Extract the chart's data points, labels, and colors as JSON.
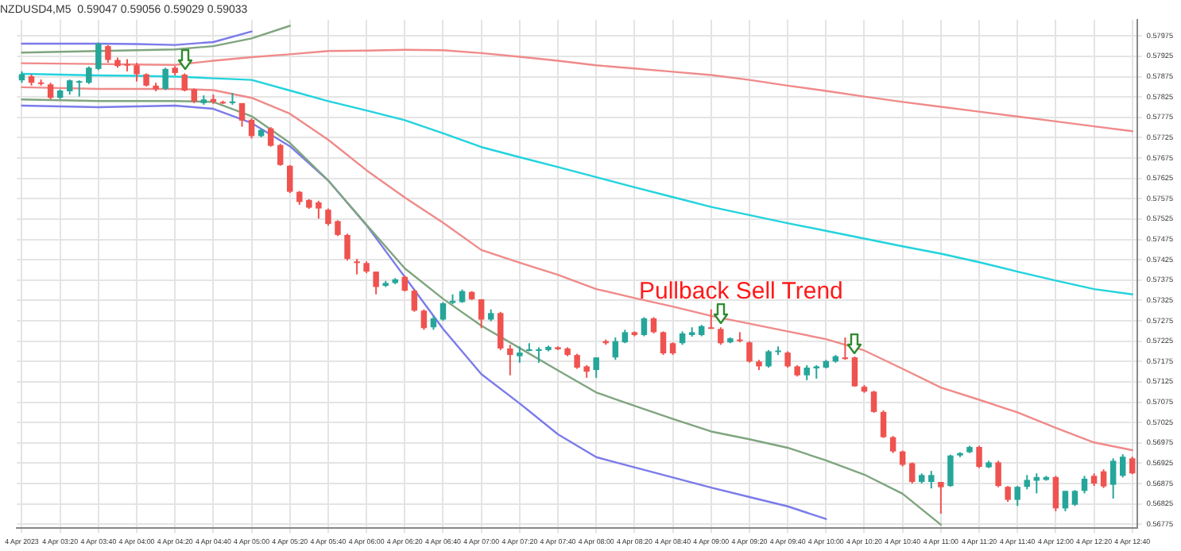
{
  "chart_data": {
    "type": "candlestick",
    "title": "NZDUSD4,M5  0.59047 0.59056 0.59029 0.59033",
    "annotations": [
      "Pullback Sell Trend"
    ],
    "ylim": [
      0.56765,
      0.58015
    ],
    "categories": [
      "4 Apr 2023",
      null,
      null,
      null,
      "4 Apr 03:20",
      null,
      null,
      null,
      "4 Apr 03:40",
      null,
      null,
      null,
      "4 Apr 04:00",
      null,
      null,
      null,
      "4 Apr 04:20",
      null,
      null,
      null,
      "4 Apr 04:40",
      null,
      null,
      null,
      "4 Apr 05:00",
      null,
      null,
      null,
      "4 Apr 05:20",
      null,
      null,
      null,
      "4 Apr 05:40",
      null,
      null,
      null,
      "4 Apr 06:00",
      null,
      null,
      null,
      "4 Apr 06:20",
      null,
      null,
      null,
      "4 Apr 06:40",
      null,
      null,
      null,
      "4 Apr 07:00",
      null,
      null,
      null,
      "4 Apr 07:20",
      null,
      null,
      null,
      "4 Apr 07:40",
      null,
      null,
      null,
      "4 Apr 08:00",
      null,
      null,
      null,
      "4 Apr 08:20",
      null,
      null,
      null,
      "4 Apr 08:40",
      null,
      null,
      null,
      "4 Apr 09:00",
      null,
      null,
      null,
      "4 Apr 09:20",
      null,
      null,
      null,
      "4 Apr 09:40",
      null,
      null,
      null,
      "4 Apr 10:00",
      null,
      null,
      null,
      "4 Apr 10:20",
      null,
      null,
      null,
      "4 Apr 10:40",
      null,
      null,
      null,
      "4 Apr 11:00",
      null,
      null,
      null,
      "4 Apr 11:20",
      null,
      null,
      null,
      "4 Apr 11:40",
      null,
      null,
      null,
      "4 Apr 12:00",
      null,
      null,
      null,
      "4 Apr 12:20",
      null,
      null,
      null,
      "4 Apr 12:40"
    ],
    "yticks": [
      0.56775,
      0.56825,
      0.56875,
      0.56925,
      0.56975,
      0.57025,
      0.57075,
      0.57125,
      0.57175,
      0.57225,
      0.57275,
      0.57325,
      0.57375,
      0.57425,
      0.57475,
      0.57525,
      0.57575,
      0.57625,
      0.57675,
      0.57725,
      0.57775,
      0.57825,
      0.57875,
      0.57925,
      0.57975
    ],
    "grid": true,
    "legend": false,
    "marker": "none",
    "ohlc": [
      [
        0.57866,
        0.57888,
        0.5786,
        0.57881
      ],
      [
        0.57876,
        0.57881,
        0.57853,
        0.5786
      ],
      [
        0.57861,
        0.57868,
        0.57853,
        0.57859
      ],
      [
        0.57856,
        0.5786,
        0.57819,
        0.57823
      ],
      [
        0.57823,
        0.57844,
        0.5782,
        0.57841
      ],
      [
        0.57839,
        0.57868,
        0.57831,
        0.57866
      ],
      [
        0.57861,
        0.57866,
        0.57826,
        0.57864
      ],
      [
        0.5786,
        0.579,
        0.57857,
        0.57897
      ],
      [
        0.57894,
        0.57959,
        0.57891,
        0.57956
      ],
      [
        0.5795,
        0.57953,
        0.57909,
        0.57916
      ],
      [
        0.57916,
        0.57922,
        0.57897,
        0.57901
      ],
      [
        0.57906,
        0.57918,
        0.57888,
        0.57903
      ],
      [
        0.57903,
        0.57909,
        0.57863,
        0.57881
      ],
      [
        0.57881,
        0.57883,
        0.57851,
        0.57853
      ],
      [
        0.57853,
        0.5786,
        0.57839,
        0.57844
      ],
      [
        0.57845,
        0.57897,
        0.57842,
        0.57894
      ],
      [
        0.57897,
        0.57901,
        0.57878,
        0.57884
      ],
      [
        0.5788,
        0.57883,
        0.57839,
        0.57841
      ],
      [
        0.57844,
        0.57846,
        0.5781,
        0.57814
      ],
      [
        0.5781,
        0.57829,
        0.57806,
        0.57819
      ],
      [
        0.5782,
        0.57831,
        0.57808,
        0.57813
      ],
      [
        0.57813,
        0.57816,
        0.57808,
        0.5781
      ],
      [
        0.5781,
        0.57835,
        0.57806,
        0.57814
      ],
      [
        0.5781,
        0.5781,
        0.57752,
        0.57767
      ],
      [
        0.57769,
        0.57773,
        0.57723,
        0.57729
      ],
      [
        0.57729,
        0.57747,
        0.57726,
        0.57744
      ],
      [
        0.57748,
        0.57751,
        0.57703,
        0.57705
      ],
      [
        0.57707,
        0.5771,
        0.57656,
        0.57658
      ],
      [
        0.57656,
        0.57658,
        0.57589,
        0.57592
      ],
      [
        0.57592,
        0.57594,
        0.5756,
        0.57567
      ],
      [
        0.57572,
        0.57574,
        0.5755,
        0.57553
      ],
      [
        0.57566,
        0.5757,
        0.57526,
        0.57551
      ],
      [
        0.57548,
        0.57551,
        0.57509,
        0.57513
      ],
      [
        0.5752,
        0.57522,
        0.57483,
        0.57486
      ],
      [
        0.57486,
        0.57489,
        0.57423,
        0.57427
      ],
      [
        0.57421,
        0.57427,
        0.57389,
        0.57417
      ],
      [
        0.57417,
        0.57421,
        0.57392,
        0.57396
      ],
      [
        0.57396,
        0.57396,
        0.5734,
        0.57358
      ],
      [
        0.57361,
        0.57373,
        0.57358,
        0.57368
      ],
      [
        0.57368,
        0.5738,
        0.57365,
        0.57377
      ],
      [
        0.57383,
        0.57386,
        0.57347,
        0.57349
      ],
      [
        0.57349,
        0.57352,
        0.57297,
        0.573
      ],
      [
        0.573,
        0.57303,
        0.57253,
        0.57257
      ],
      [
        0.57259,
        0.57287,
        0.57253,
        0.57281
      ],
      [
        0.57278,
        0.57321,
        0.57275,
        0.57318
      ],
      [
        0.57319,
        0.5734,
        0.57316,
        0.57324
      ],
      [
        0.57321,
        0.57352,
        0.57319,
        0.57348
      ],
      [
        0.57346,
        0.57348,
        0.57326,
        0.57328
      ],
      [
        0.57328,
        0.57328,
        0.57257,
        0.57278
      ],
      [
        0.57278,
        0.57303,
        0.57274,
        0.57294
      ],
      [
        0.57294,
        0.57297,
        0.57203,
        0.57207
      ],
      [
        0.57207,
        0.57216,
        0.57141,
        0.57191
      ],
      [
        0.57188,
        0.57212,
        0.57172,
        0.57197
      ],
      [
        0.57201,
        0.5722,
        0.572,
        0.57205
      ],
      [
        0.57201,
        0.5721,
        0.57172,
        0.57205
      ],
      [
        0.57203,
        0.57214,
        0.572,
        0.57211
      ],
      [
        0.5721,
        0.57212,
        0.57203,
        0.57205
      ],
      [
        0.57207,
        0.5721,
        0.57188,
        0.57191
      ],
      [
        0.57191,
        0.57194,
        0.57157,
        0.5716
      ],
      [
        0.57163,
        0.57166,
        0.57135,
        0.5715
      ],
      [
        0.57154,
        0.57185,
        0.57135,
        0.57185
      ],
      [
        0.57225,
        0.57229,
        0.57216,
        0.5722
      ],
      [
        0.57185,
        0.57234,
        0.57179,
        0.57225
      ],
      [
        0.57222,
        0.57253,
        0.5722,
        0.57247
      ],
      [
        0.57247,
        0.57249,
        0.57237,
        0.5724
      ],
      [
        0.5724,
        0.57284,
        0.57237,
        0.57281
      ],
      [
        0.57281,
        0.57284,
        0.57244,
        0.57247
      ],
      [
        0.57247,
        0.57249,
        0.57191,
        0.57195
      ],
      [
        0.5722,
        0.57222,
        0.57191,
        0.57195
      ],
      [
        0.5722,
        0.57249,
        0.57216,
        0.57244
      ],
      [
        0.5724,
        0.57259,
        0.57236,
        0.57247
      ],
      [
        0.5724,
        0.57265,
        0.57237,
        0.57262
      ],
      [
        0.57259,
        0.57303,
        0.57256,
        0.57257
      ],
      [
        0.57255,
        0.57259,
        0.57216,
        0.5722
      ],
      [
        0.57222,
        0.57234,
        0.5722,
        0.57232
      ],
      [
        0.57229,
        0.57247,
        0.57222,
        0.57225
      ],
      [
        0.57222,
        0.57225,
        0.57172,
        0.57175
      ],
      [
        0.57175,
        0.57179,
        0.57154,
        0.57163
      ],
      [
        0.57163,
        0.57203,
        0.5716,
        0.572
      ],
      [
        0.572,
        0.57212,
        0.57191,
        0.57202
      ],
      [
        0.57197,
        0.572,
        0.5716,
        0.57163
      ],
      [
        0.57163,
        0.57166,
        0.57138,
        0.57141
      ],
      [
        0.57141,
        0.57166,
        0.57129,
        0.5716
      ],
      [
        0.57158,
        0.57166,
        0.57133,
        0.57163
      ],
      [
        0.5716,
        0.57179,
        0.57158,
        0.57176
      ],
      [
        0.57175,
        0.57191,
        0.57172,
        0.57188
      ],
      [
        0.57185,
        0.57234,
        0.57179,
        0.57181
      ],
      [
        0.57185,
        0.57187,
        0.57113,
        0.57114
      ],
      [
        0.57113,
        0.57117,
        0.57098,
        0.57101
      ],
      [
        0.57101,
        0.57103,
        0.57049,
        0.57051
      ],
      [
        0.57051,
        0.57055,
        0.56987,
        0.56989
      ],
      [
        0.56989,
        0.56992,
        0.5695,
        0.56954
      ],
      [
        0.56954,
        0.56956,
        0.56917,
        0.56921
      ],
      [
        0.56925,
        0.56927,
        0.56875,
        0.56879
      ],
      [
        0.56879,
        0.569,
        0.56875,
        0.56896
      ],
      [
        0.56879,
        0.56906,
        0.56863,
        0.56896
      ],
      [
        0.56879,
        0.56879,
        0.56801,
        0.56866
      ],
      [
        0.56869,
        0.56946,
        0.56867,
        0.56944
      ],
      [
        0.56944,
        0.56952,
        0.5694,
        0.5695
      ],
      [
        0.56952,
        0.56968,
        0.5695,
        0.56965
      ],
      [
        0.56965,
        0.56968,
        0.56913,
        0.56916
      ],
      [
        0.56915,
        0.56931,
        0.56913,
        0.56927
      ],
      [
        0.56927,
        0.56931,
        0.56866,
        0.56869
      ],
      [
        0.56867,
        0.56869,
        0.5683,
        0.56835
      ],
      [
        0.56835,
        0.56869,
        0.5682,
        0.56867
      ],
      [
        0.56867,
        0.56896,
        0.56861,
        0.56884
      ],
      [
        0.56882,
        0.569,
        0.56851,
        0.56891
      ],
      [
        0.56884,
        0.56894,
        0.56882,
        0.56891
      ],
      [
        0.56891,
        0.56894,
        0.56807,
        0.56814
      ],
      [
        0.56814,
        0.56857,
        0.56807,
        0.56857
      ],
      [
        0.56823,
        0.56859,
        0.5682,
        0.56857
      ],
      [
        0.56857,
        0.56894,
        0.56851,
        0.56887
      ],
      [
        0.56894,
        0.569,
        0.56869,
        0.56875
      ],
      [
        0.56905,
        0.5691,
        0.56864,
        0.56868
      ],
      [
        0.56872,
        0.56937,
        0.56838,
        0.56931
      ],
      [
        0.56894,
        0.56947,
        0.5689,
        0.56941
      ],
      [
        0.56937,
        0.56941,
        0.56898,
        0.569
      ]
    ],
    "colors": [
      "#26a69a",
      "#ef5350",
      "#ef5350",
      "#ef5350",
      "#26a69a",
      "#26a69a",
      "#26a69a",
      "#26a69a",
      "#26a69a",
      "#ef5350",
      "#ef5350",
      "#ef5350",
      "#ef5350",
      "#ef5350",
      "#ef5350",
      "#26a69a",
      "#ef5350",
      "#ef5350",
      "#ef5350",
      "#26a69a",
      "#ef5350",
      "#ef5350",
      "#26a69a",
      "#ef5350",
      "#ef5350",
      "#26a69a",
      "#ef5350",
      "#ef5350",
      "#ef5350",
      "#ef5350",
      "#ef5350",
      "#ef5350",
      "#ef5350",
      "#ef5350",
      "#ef5350",
      "#ef5350",
      "#ef5350",
      "#ef5350",
      "#26a69a",
      "#26a69a",
      "#ef5350",
      "#ef5350",
      "#ef5350",
      "#26a69a",
      "#26a69a",
      "#26a69a",
      "#26a69a",
      "#ef5350",
      "#ef5350",
      "#26a69a",
      "#ef5350",
      "#ef5350",
      "#26a69a",
      "#26a69a",
      "#26a69a",
      "#26a69a",
      "#ef5350",
      "#ef5350",
      "#ef5350",
      "#ef5350",
      "#26a69a",
      "#ef5350",
      "#26a69a",
      "#26a69a",
      "#ef5350",
      "#26a69a",
      "#ef5350",
      "#ef5350",
      "#ef5350",
      "#26a69a",
      "#26a69a",
      "#26a69a",
      "#ef5350",
      "#ef5350",
      "#26a69a",
      "#ef5350",
      "#ef5350",
      "#ef5350",
      "#26a69a",
      "#26a69a",
      "#ef5350",
      "#ef5350",
      "#26a69a",
      "#26a69a",
      "#26a69a",
      "#26a69a",
      "#ef5350",
      "#ef5350",
      "#ef5350",
      "#ef5350",
      "#ef5350",
      "#ef5350",
      "#ef5350",
      "#ef5350",
      "#26a69a",
      "#26a69a",
      "#ef5350",
      "#26a69a",
      "#26a69a",
      "#26a69a",
      "#ef5350",
      "#26a69a",
      "#ef5350",
      "#ef5350",
      "#26a69a",
      "#26a69a",
      "#26a69a",
      "#26a69a",
      "#ef5350",
      "#26a69a",
      "#26a69a",
      "#26a69a",
      "#ef5350",
      "#ef5350",
      "#26a69a",
      "#26a69a",
      "#ef5350"
    ],
    "series": [
      {
        "type": "line",
        "color": "#7b7bea",
        "x": [
          "4 Apr 2023",
          "4 Apr 03:20",
          "4 Apr 03:40",
          "4 Apr 04:00",
          "4 Apr 04:20",
          "4 Apr 04:40",
          "4 Apr 05:00"
        ],
        "values": [
          0.57956,
          0.57956,
          0.57956,
          0.57955,
          0.57953,
          0.5796,
          0.57986
        ]
      },
      {
        "type": "line",
        "color": "#7fa57f",
        "x": [
          "4 Apr 2023",
          "4 Apr 03:20",
          "4 Apr 03:40",
          "4 Apr 04:00",
          "4 Apr 04:20",
          "4 Apr 04:40",
          "4 Apr 05:00",
          "4 Apr 05:20"
        ],
        "values": [
          0.57934,
          0.57936,
          0.57938,
          0.5794,
          0.57942,
          0.5795,
          0.57969,
          0.58
        ]
      },
      {
        "type": "line",
        "color": "#f08a8a",
        "x": [
          "4 Apr 2023",
          "4 Apr 03:20",
          "4 Apr 03:40",
          "4 Apr 04:00",
          "4 Apr 04:20",
          "4 Apr 04:40",
          "4 Apr 05:00",
          "4 Apr 05:20",
          "4 Apr 05:40",
          "4 Apr 06:00",
          "4 Apr 06:20",
          "4 Apr 06:40",
          "4 Apr 07:00",
          "4 Apr 07:20",
          "4 Apr 07:40",
          "4 Apr 08:00",
          "4 Apr 08:20",
          "4 Apr 08:40",
          "4 Apr 09:00",
          "4 Apr 09:20",
          "4 Apr 09:40",
          "4 Apr 10:00",
          "4 Apr 10:20",
          "4 Apr 10:40",
          "4 Apr 11:00",
          "4 Apr 11:20",
          "4 Apr 11:40",
          "4 Apr 12:00",
          "4 Apr 12:20",
          "4 Apr 12:40"
        ],
        "values": [
          0.57908,
          0.57907,
          0.57906,
          0.57905,
          0.57904,
          0.57914,
          0.57923,
          0.5793,
          0.57938,
          0.57939,
          0.57941,
          0.5794,
          0.57933,
          0.57924,
          0.57914,
          0.57903,
          0.57895,
          0.57887,
          0.57879,
          0.57867,
          0.57853,
          0.5784,
          0.57826,
          0.57813,
          0.57801,
          0.57789,
          0.57777,
          0.57765,
          0.57753,
          0.57741
        ]
      },
      {
        "type": "line",
        "color": "#22d3dd",
        "x": [
          "4 Apr 2023",
          "4 Apr 03:20",
          "4 Apr 03:40",
          "4 Apr 04:00",
          "4 Apr 04:20",
          "4 Apr 04:40",
          "4 Apr 05:00",
          "4 Apr 05:20",
          "4 Apr 05:40",
          "4 Apr 06:00",
          "4 Apr 06:20",
          "4 Apr 06:40",
          "4 Apr 07:00",
          "4 Apr 07:20",
          "4 Apr 07:40",
          "4 Apr 08:00",
          "4 Apr 08:20",
          "4 Apr 08:40",
          "4 Apr 09:00",
          "4 Apr 09:20",
          "4 Apr 09:40",
          "4 Apr 10:00",
          "4 Apr 10:20",
          "4 Apr 10:40",
          "4 Apr 11:00",
          "4 Apr 11:20",
          "4 Apr 11:40",
          "4 Apr 12:00",
          "4 Apr 12:20",
          "4 Apr 12:40"
        ],
        "values": [
          0.57882,
          0.5788,
          0.57878,
          0.57877,
          0.57875,
          0.57871,
          0.57867,
          0.57841,
          0.57815,
          0.57792,
          0.57768,
          0.57736,
          0.57702,
          0.57677,
          0.57653,
          0.57628,
          0.57603,
          0.57579,
          0.57555,
          0.57535,
          0.57515,
          0.57496,
          0.57477,
          0.57458,
          0.5744,
          0.57419,
          0.57396,
          0.57374,
          0.57353,
          0.5734
        ]
      },
      {
        "type": "line",
        "color": "#f08a8a",
        "x": [
          "4 Apr 2023",
          "4 Apr 03:20",
          "4 Apr 03:40",
          "4 Apr 04:00",
          "4 Apr 04:20",
          "4 Apr 04:40",
          "4 Apr 05:00",
          "4 Apr 05:20",
          "4 Apr 05:40",
          "4 Apr 06:00",
          "4 Apr 06:20",
          "4 Apr 06:40",
          "4 Apr 07:00",
          "4 Apr 07:20",
          "4 Apr 07:40",
          "4 Apr 08:00",
          "4 Apr 08:20",
          "4 Apr 08:40",
          "4 Apr 09:00",
          "4 Apr 09:20",
          "4 Apr 09:40",
          "4 Apr 10:00",
          "4 Apr 10:20",
          "4 Apr 10:40",
          "4 Apr 11:00",
          "4 Apr 11:20",
          "4 Apr 11:40",
          "4 Apr 12:00",
          "4 Apr 12:20",
          "4 Apr 12:40"
        ],
        "values": [
          0.57849,
          0.57847,
          0.57845,
          0.57845,
          0.57845,
          0.57842,
          0.57823,
          0.57784,
          0.5772,
          0.57645,
          0.57578,
          0.57516,
          0.57449,
          0.57418,
          0.57388,
          0.57353,
          0.57331,
          0.5731,
          0.57287,
          0.57268,
          0.57249,
          0.5723,
          0.57202,
          0.57157,
          0.57111,
          0.57081,
          0.5705,
          0.57012,
          0.56976,
          0.56957
        ]
      },
      {
        "type": "line",
        "color": "#7fa57f",
        "x": [
          "4 Apr 2023",
          "4 Apr 03:20",
          "4 Apr 03:40",
          "4 Apr 04:00",
          "4 Apr 04:20",
          "4 Apr 04:40",
          "4 Apr 05:00",
          "4 Apr 05:20",
          "4 Apr 05:40",
          "4 Apr 06:00",
          "4 Apr 06:20",
          "4 Apr 06:40",
          "4 Apr 07:00",
          "4 Apr 07:20",
          "4 Apr 07:40",
          "4 Apr 08:00",
          "4 Apr 08:20",
          "4 Apr 08:40",
          "4 Apr 09:00",
          "4 Apr 09:20",
          "4 Apr 09:40",
          "4 Apr 10:00",
          "4 Apr 10:20",
          "4 Apr 10:40",
          "4 Apr 11:00"
        ],
        "values": [
          0.57819,
          0.57817,
          0.57815,
          0.57815,
          0.57815,
          0.57813,
          0.57778,
          0.57712,
          0.5762,
          0.57511,
          0.57404,
          0.57329,
          0.57263,
          0.57208,
          0.57153,
          0.57099,
          0.57066,
          0.57034,
          0.57003,
          0.56984,
          0.56963,
          0.56932,
          0.56897,
          0.5685,
          0.56774
        ]
      },
      {
        "type": "line",
        "color": "#7b7bea",
        "x": [
          "4 Apr 2023",
          "4 Apr 03:20",
          "4 Apr 03:40",
          "4 Apr 04:00",
          "4 Apr 04:20",
          "4 Apr 04:40",
          "4 Apr 05:00",
          "4 Apr 05:20",
          "4 Apr 05:40",
          "4 Apr 06:00",
          "4 Apr 06:20",
          "4 Apr 06:40",
          "4 Apr 07:00",
          "4 Apr 07:20",
          "4 Apr 07:40",
          "4 Apr 08:00",
          "4 Apr 08:20",
          "4 Apr 08:40",
          "4 Apr 09:00",
          "4 Apr 09:20",
          "4 Apr 09:40",
          "4 Apr 10:00"
        ],
        "values": [
          0.57804,
          0.57802,
          0.578,
          0.57802,
          0.57804,
          0.57796,
          0.57761,
          0.57704,
          0.5762,
          0.5751,
          0.57383,
          0.57255,
          0.57144,
          0.57072,
          0.56996,
          0.5694,
          0.56915,
          0.5689,
          0.56865,
          0.56842,
          0.56819,
          0.56788
        ]
      }
    ]
  }
}
